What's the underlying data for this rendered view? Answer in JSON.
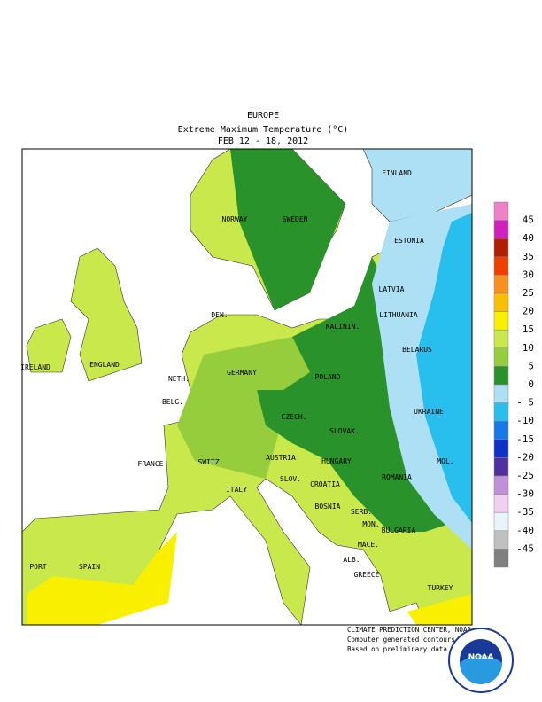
{
  "header": {
    "region": "EUROPE",
    "title": "Extreme Maximum Temperature (°C)",
    "dates": "FEB 12 - 18, 2012"
  },
  "countries": [
    "FINLAND",
    "NORWAY",
    "SWEDEN",
    "ESTONIA",
    "DEN.",
    "LATVIA",
    "LITHUANIA",
    "KALININ.",
    "IRELAND",
    "ENGLAND",
    "BELARUS",
    "NETH.",
    "GERMANY",
    "POLAND",
    "BELG.",
    "CZECH.",
    "UKRAINE",
    "SLOVAK.",
    "FRANCE",
    "SWITZ.",
    "AUSTRIA",
    "HUNGARY",
    "MOL.",
    "ROMANIA",
    "SLOV.",
    "CROATIA",
    "ITALY",
    "BOSNIA",
    "SERB.",
    "MON.",
    "BULGARIA",
    "MACE.",
    "PORT",
    "SPAIN",
    "ALB.",
    "GREECE",
    "TURKEY"
  ],
  "legend": {
    "ticks": [
      45,
      40,
      35,
      30,
      25,
      20,
      15,
      10,
      5,
      0,
      {
        "value": -5,
        "label": "- 5"
      },
      -10,
      -15,
      -20,
      -25,
      -30,
      -35,
      -40,
      -45
    ],
    "colors": [
      "#f080c8",
      "#d020c0",
      "#b02000",
      "#f04000",
      "#f89020",
      "#f8c000",
      "#f8f000",
      "#c8e84b",
      "#96cd3c",
      "#2a922a",
      "#aee0f5",
      "#28beee",
      "#1878e8",
      "#1030c8",
      "#5030a0",
      "#c090d8",
      "#f0d0f0",
      "#e8f4f8",
      "#c0c0c0",
      "#808080"
    ]
  },
  "credits": [
    "CLIMATE PREDICTION CENTER, NOAA",
    "Computer generated contours",
    "Based on preliminary data"
  ],
  "logo": "NOAA"
}
